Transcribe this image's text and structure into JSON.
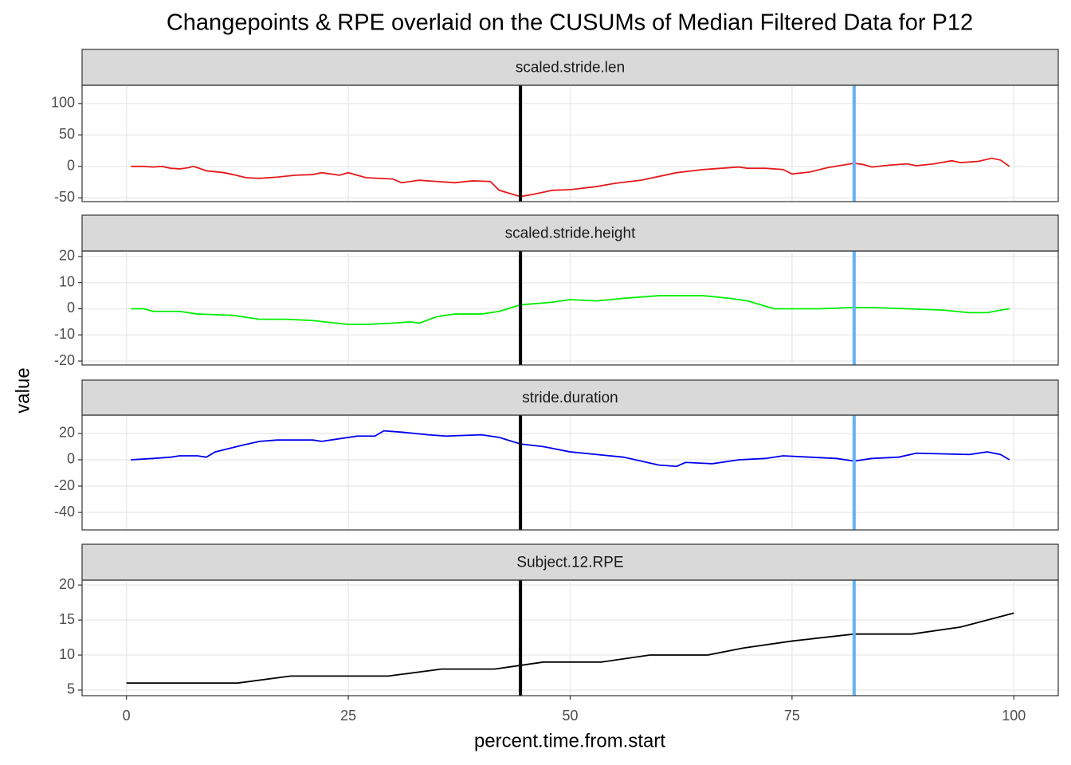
{
  "chart_data": {
    "type": "line",
    "title": "Changepoints & RPE overlaid on the CUSUMs of Median Filtered Data for P12",
    "xlabel": "percent.time.from.start",
    "ylabel": "value",
    "xlim": [
      -5,
      105
    ],
    "xticks": [
      0,
      25,
      50,
      75,
      100
    ],
    "grid": true,
    "changepoints": [
      {
        "x": 44.4,
        "color": "#000000"
      },
      {
        "x": 82,
        "color": "#63b3f3"
      }
    ],
    "panels": [
      {
        "strip": "scaled.stride.len",
        "color": "#e41a1c",
        "x": [
          0.5,
          2,
          3,
          4,
          5,
          6,
          7,
          7.5,
          8,
          9,
          11,
          12,
          13.5,
          15,
          17,
          19,
          21,
          22,
          24,
          25,
          27,
          30,
          31,
          33,
          35,
          37,
          39,
          41,
          42,
          44.4,
          46,
          48,
          50,
          53,
          55,
          58,
          62,
          65,
          67,
          69,
          70,
          72,
          74,
          75,
          77,
          79,
          82,
          83,
          84,
          86,
          88,
          89,
          91,
          93,
          94,
          96,
          97.5,
          98.5,
          99.5
        ],
        "values": [
          0,
          0,
          -1,
          0,
          -3,
          -4,
          -2,
          0,
          -2,
          -7,
          -10,
          -13,
          -18,
          -19,
          -17,
          -14,
          -13,
          -10,
          -14,
          -10,
          -18,
          -20,
          -26,
          -22,
          -24,
          -26,
          -23,
          -24,
          -38,
          -48,
          -44,
          -38,
          -37,
          -32,
          -27,
          -22,
          -10,
          -5,
          -3,
          -1,
          -3,
          -3,
          -5,
          -12,
          -9,
          -2,
          5,
          3,
          -1,
          2,
          4,
          1,
          4,
          9,
          6,
          8,
          13,
          10,
          0
        ],
        "ylim": [
          -56,
          129
        ],
        "yticks": [
          -50,
          0,
          50,
          100
        ]
      },
      {
        "strip": "scaled.stride.height",
        "color": "#00ee00",
        "x": [
          0.5,
          2,
          3,
          6,
          8,
          12,
          15,
          18,
          21,
          25,
          27,
          30,
          32,
          33,
          35,
          37,
          40,
          42,
          44.4,
          48,
          50,
          53,
          56,
          60,
          65,
          68,
          70,
          73,
          78,
          82,
          84,
          88,
          92,
          95,
          97,
          98.5,
          99.5
        ],
        "values": [
          0,
          0,
          -1,
          -1,
          -2,
          -2.5,
          -4,
          -4,
          -4.5,
          -6,
          -6,
          -5.5,
          -5,
          -5.5,
          -3,
          -2,
          -2,
          -1,
          1.5,
          2.5,
          3.5,
          3,
          4,
          5,
          5,
          4,
          3,
          0,
          0,
          0.5,
          0.5,
          0,
          -0.5,
          -1.5,
          -1.5,
          -0.5,
          0
        ],
        "ylim": [
          -21.5,
          22.1
        ],
        "yticks": [
          -20,
          -10,
          0,
          10,
          20
        ]
      },
      {
        "strip": "stride.duration",
        "color": "#0000ee",
        "x": [
          0.5,
          3,
          5,
          6,
          8,
          9,
          10,
          13,
          15,
          17,
          21,
          22,
          24,
          26,
          28,
          29,
          31,
          34,
          36,
          40,
          42,
          44.4,
          47,
          50,
          53,
          56,
          60,
          62,
          63,
          66,
          69,
          72,
          74,
          77,
          80,
          82,
          84,
          87,
          89,
          95,
          97,
          98.5,
          99.5
        ],
        "values": [
          0,
          1,
          2,
          3,
          3,
          2,
          6,
          11,
          14,
          15,
          15,
          14,
          16,
          18,
          18,
          22,
          21,
          19,
          18,
          19,
          17,
          12,
          10,
          6,
          4,
          2,
          -4,
          -5,
          -2,
          -3,
          0,
          1,
          3,
          2,
          1,
          -1,
          1,
          2,
          5,
          4,
          6,
          4,
          0
        ],
        "ylim": [
          -53.3,
          33.9
        ],
        "yticks": [
          -40,
          -20,
          0,
          20
        ]
      },
      {
        "strip": "Subject.12.RPE",
        "color": "#000000",
        "x": [
          0,
          12.5,
          18.5,
          29.5,
          35.5,
          41.5,
          47,
          53.5,
          59,
          65.5,
          69.5,
          75,
          82,
          88.5,
          94,
          100
        ],
        "values": [
          6,
          6,
          7,
          7,
          8,
          8,
          9,
          9,
          10,
          10,
          11,
          12,
          13,
          13,
          14,
          16
        ],
        "ylim": [
          4.2,
          20.7
        ],
        "yticks": [
          5,
          10,
          15,
          20
        ]
      }
    ]
  }
}
